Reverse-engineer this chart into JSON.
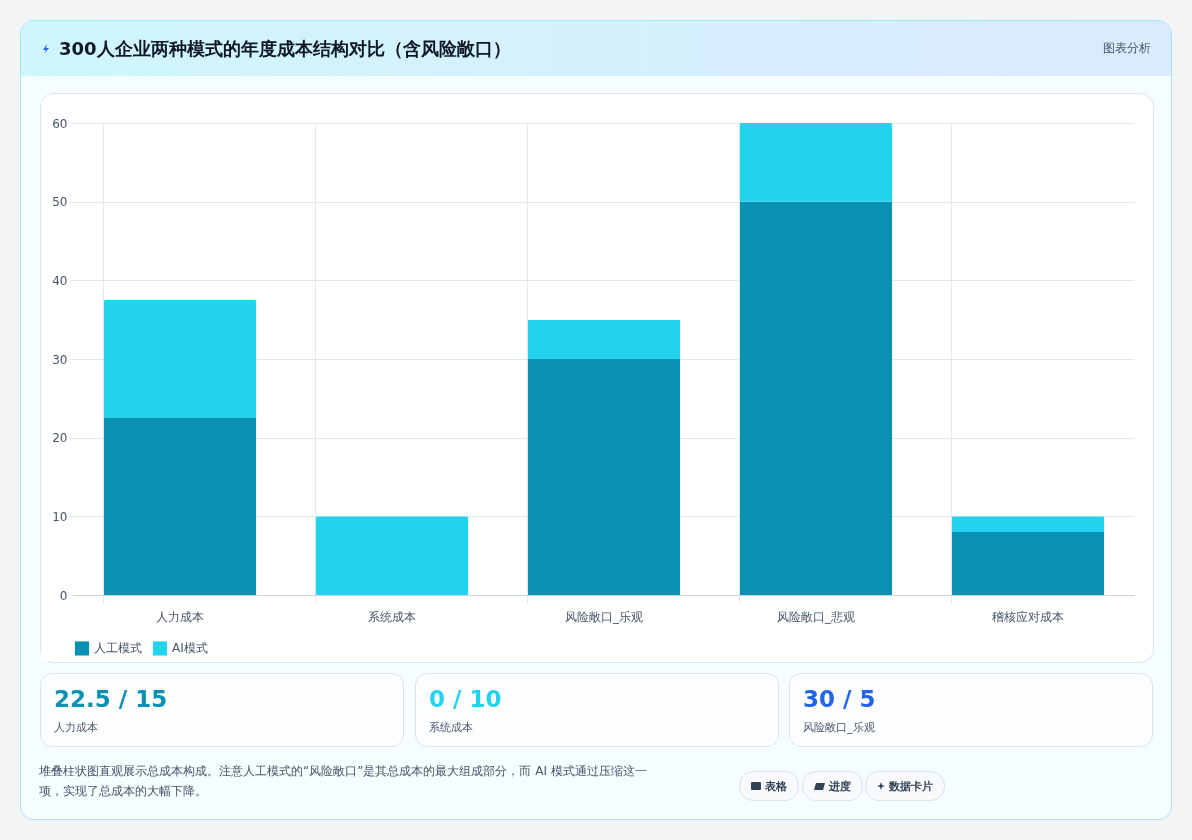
{
  "chart_data": {
    "type": "bar",
    "title": "300人企业两种模式的年度成本结构对比（含风险敞口）",
    "categories": [
      "人力成本",
      "系统成本",
      "风险敞口_乐观",
      "风险敞口_悲观",
      "稽核应对成本"
    ],
    "series": [
      {
        "name": "人工模式",
        "color": "#0891b2",
        "values": [
          22.5,
          0,
          30,
          50,
          8
        ]
      },
      {
        "name": "AI模式",
        "color": "#22d3ee",
        "values": [
          15,
          10,
          5,
          10,
          2
        ]
      }
    ],
    "stacked": true,
    "ylim": [
      0,
      60
    ],
    "yticks": [
      0,
      10,
      20,
      30,
      40,
      50,
      60
    ],
    "grid": true,
    "legend": "bottom",
    "annotations": [
      "图表分析",
      "22.5 / 15",
      "人力成本",
      "0 / 10",
      "系统成本",
      "30 / 5",
      "风险敞口_乐观",
      "堆叠柱状图直观展示总成本构成。注意人工模式的“风险敞口”是其总成本的最大组成部分，而 AI 模式通过压缩这一项，实现了总成本的大幅下降。",
      "表格",
      "进度",
      "数据卡片"
    ]
  }
}
